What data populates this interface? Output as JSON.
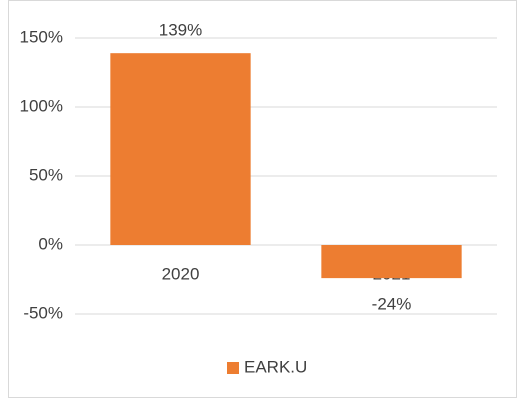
{
  "chart_data": {
    "type": "bar",
    "categories": [
      "2020",
      "2021"
    ],
    "series": [
      {
        "name": "EARK.U",
        "color": "#ed7d31",
        "values": [
          139,
          -24
        ],
        "value_labels": [
          "139%",
          "-24%"
        ]
      }
    ],
    "ylim": [
      -50,
      150
    ],
    "yticks": [
      {
        "value": -50,
        "label": "-50%"
      },
      {
        "value": 0,
        "label": "0%"
      },
      {
        "value": 50,
        "label": "50%"
      },
      {
        "value": 100,
        "label": "100%"
      },
      {
        "value": 150,
        "label": "150%"
      }
    ],
    "grid": true,
    "legend": "bottom"
  }
}
